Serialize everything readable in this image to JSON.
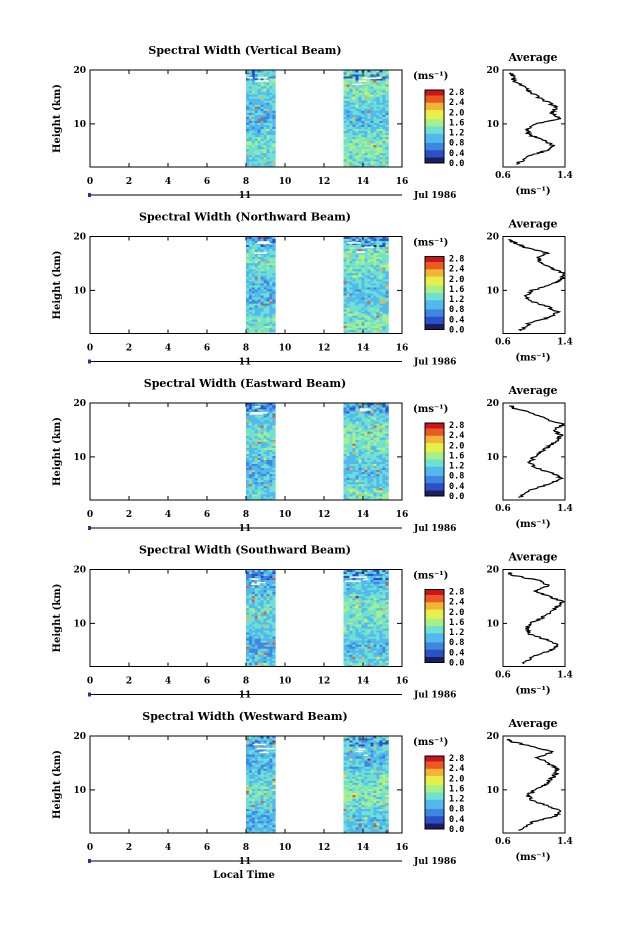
{
  "figure": {
    "xlabel": "Local Time",
    "date_label": "Jul 1986",
    "day_label": "11",
    "unit_label": "(ms⁻¹)",
    "average_title": "Average",
    "colorbar_ticks": [
      "2.8",
      "2.4",
      "2.0",
      "1.6",
      "1.2",
      "0.8",
      "0.4",
      "0.0"
    ],
    "colormap": [
      "#1a1e5c",
      "#2b50c8",
      "#3f86e0",
      "#52b9ee",
      "#6fe0d2",
      "#a6ef8a",
      "#e7ef4a",
      "#f3b437",
      "#ea5a22",
      "#c8161c"
    ],
    "background_color": "#ffffff",
    "axis_color": "#000000"
  },
  "chart_data": [
    {
      "type": "heatmap",
      "title": "Spectral Width (Vertical Beam)",
      "ylabel": "Height (km)",
      "xlim": [
        0,
        16
      ],
      "ylim": [
        2,
        20
      ],
      "xticks": [
        "0",
        "2",
        "4",
        "6",
        "8",
        "10",
        "12",
        "14",
        "16"
      ],
      "yticks": [
        "20",
        "10"
      ],
      "data_time_ranges": [
        [
          8,
          9.5
        ],
        [
          13,
          15.3
        ]
      ],
      "colorbar_range": [
        0.0,
        2.8
      ],
      "average_profile": {
        "xlim": [
          0.6,
          1.4
        ],
        "xticks": [
          "0.6",
          "1.4"
        ],
        "yticks": [
          "20",
          "10"
        ],
        "height": [
          2.5,
          4,
          5,
          6,
          7,
          8,
          9,
          10,
          11,
          12,
          13,
          14,
          15,
          16,
          17,
          18,
          19,
          19.5
        ],
        "value": [
          0.78,
          0.92,
          1.15,
          1.25,
          1.12,
          0.93,
          0.92,
          1.02,
          1.35,
          1.22,
          1.3,
          1.18,
          1.05,
          0.95,
          0.85,
          0.75,
          0.72,
          0.7
        ]
      }
    },
    {
      "type": "heatmap",
      "title": "Spectral Width (Northward Beam)",
      "ylabel": "Height (km)",
      "xlim": [
        0,
        16
      ],
      "ylim": [
        2,
        20
      ],
      "xticks": [
        "0",
        "2",
        "4",
        "6",
        "8",
        "10",
        "12",
        "14",
        "16"
      ],
      "yticks": [
        "20",
        "10"
      ],
      "data_time_ranges": [
        [
          8,
          9.5
        ],
        [
          13,
          15.3
        ]
      ],
      "colorbar_range": [
        0.0,
        2.8
      ],
      "average_profile": {
        "xlim": [
          0.6,
          1.4
        ],
        "xticks": [
          "0.6",
          "1.4"
        ],
        "yticks": [
          "20",
          "10"
        ],
        "height": [
          2.5,
          4,
          5,
          6,
          7,
          8,
          9,
          10,
          11,
          12,
          13,
          14,
          15,
          16,
          17,
          18,
          19,
          19.5
        ],
        "value": [
          0.82,
          0.95,
          1.2,
          1.3,
          1.18,
          0.95,
          0.9,
          0.98,
          1.2,
          1.35,
          1.4,
          1.25,
          1.1,
          1.05,
          1.18,
          0.88,
          0.72,
          0.68
        ]
      }
    },
    {
      "type": "heatmap",
      "title": "Spectral Width (Eastward Beam)",
      "ylabel": "Height (km)",
      "xlim": [
        0,
        16
      ],
      "ylim": [
        2,
        20
      ],
      "xticks": [
        "0",
        "2",
        "4",
        "6",
        "8",
        "10",
        "12",
        "14",
        "16"
      ],
      "yticks": [
        "20",
        "10"
      ],
      "data_time_ranges": [
        [
          8,
          9.5
        ],
        [
          13,
          15.3
        ]
      ],
      "colorbar_range": [
        0.0,
        2.8
      ],
      "average_profile": {
        "xlim": [
          0.6,
          1.4
        ],
        "xticks": [
          "0.6",
          "1.4"
        ],
        "yticks": [
          "20",
          "10"
        ],
        "height": [
          2.5,
          4,
          5,
          6,
          7,
          8,
          9,
          10,
          11,
          12,
          13,
          14,
          15,
          16,
          17,
          18,
          19,
          19.5
        ],
        "value": [
          0.8,
          0.98,
          1.2,
          1.35,
          1.25,
          1.0,
          0.95,
          1.0,
          1.1,
          1.2,
          1.3,
          1.35,
          1.25,
          1.38,
          1.15,
          1.0,
          0.75,
          0.7
        ]
      }
    },
    {
      "type": "heatmap",
      "title": "Spectral Width (Southward Beam)",
      "ylabel": "Height (km)",
      "xlim": [
        0,
        16
      ],
      "ylim": [
        2,
        20
      ],
      "xticks": [
        "0",
        "2",
        "4",
        "6",
        "8",
        "10",
        "12",
        "14",
        "16"
      ],
      "yticks": [
        "20",
        "10"
      ],
      "data_time_ranges": [
        [
          8,
          9.5
        ],
        [
          13,
          15.3
        ]
      ],
      "colorbar_range": [
        0.0,
        2.8
      ],
      "average_profile": {
        "xlim": [
          0.6,
          1.4
        ],
        "xticks": [
          "0.6",
          "1.4"
        ],
        "yticks": [
          "20",
          "10"
        ],
        "height": [
          2.5,
          4,
          5,
          6,
          7,
          8,
          9,
          10,
          11,
          12,
          13,
          14,
          15,
          16,
          17,
          18,
          19,
          19.5
        ],
        "value": [
          0.85,
          1.0,
          1.22,
          1.32,
          1.15,
          0.95,
          0.9,
          0.95,
          1.1,
          1.2,
          1.3,
          1.38,
          1.2,
          1.0,
          1.2,
          1.05,
          0.7,
          0.68
        ]
      }
    },
    {
      "type": "heatmap",
      "title": "Spectral Width (Westward Beam)",
      "ylabel": "Height (km)",
      "xlim": [
        0,
        16
      ],
      "ylim": [
        2,
        20
      ],
      "xticks": [
        "0",
        "2",
        "4",
        "6",
        "8",
        "10",
        "12",
        "14",
        "16"
      ],
      "yticks": [
        "20",
        "10"
      ],
      "data_time_ranges": [
        [
          8,
          9.5
        ],
        [
          13,
          15.3
        ]
      ],
      "colorbar_range": [
        0.0,
        2.8
      ],
      "average_profile": {
        "xlim": [
          0.6,
          1.4
        ],
        "xticks": [
          "0.6",
          "1.4"
        ],
        "yticks": [
          "20",
          "10"
        ],
        "height": [
          2.5,
          4,
          5,
          6,
          7,
          8,
          9,
          10,
          11,
          12,
          13,
          14,
          15,
          16,
          17,
          18,
          19,
          19.5
        ],
        "value": [
          0.82,
          0.98,
          1.25,
          1.35,
          1.2,
          0.98,
          0.92,
          1.0,
          1.15,
          1.22,
          1.28,
          1.3,
          1.18,
          1.05,
          1.25,
          1.0,
          0.7,
          0.66
        ]
      }
    }
  ]
}
